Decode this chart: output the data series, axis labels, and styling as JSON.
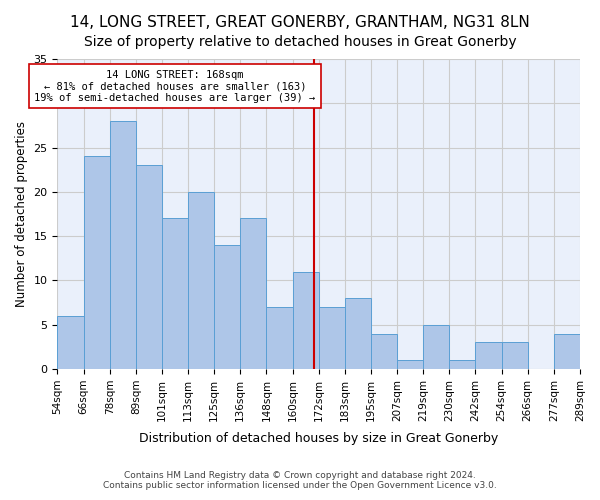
{
  "title1": "14, LONG STREET, GREAT GONERBY, GRANTHAM, NG31 8LN",
  "title2": "Size of property relative to detached houses in Great Gonerby",
  "xlabel": "Distribution of detached houses by size in Great Gonerby",
  "ylabel": "Number of detached properties",
  "footer1": "Contains HM Land Registry data © Crown copyright and database right 2024.",
  "footer2": "Contains public sector information licensed under the Open Government Licence v3.0.",
  "bin_labels": [
    "54sqm",
    "66sqm",
    "78sqm",
    "89sqm",
    "101sqm",
    "113sqm",
    "125sqm",
    "136sqm",
    "148sqm",
    "160sqm",
    "172sqm",
    "183sqm",
    "195sqm",
    "207sqm",
    "219sqm",
    "230sqm",
    "242sqm",
    "254sqm",
    "266sqm",
    "277sqm",
    "289sqm"
  ],
  "bar_heights": [
    6,
    24,
    28,
    23,
    17,
    20,
    14,
    17,
    7,
    11,
    7,
    8,
    4,
    1,
    5,
    1,
    3,
    3,
    0,
    4
  ],
  "bar_color": "#aec6e8",
  "bar_edge_color": "#5a9fd4",
  "vline_x": 9.818,
  "vline_color": "#cc0000",
  "annotation_text": "14 LONG STREET: 168sqm\n← 81% of detached houses are smaller (163)\n19% of semi-detached houses are larger (39) →",
  "annotation_box_color": "#ffffff",
  "annotation_box_edge": "#cc0000",
  "ylim": [
    0,
    35
  ],
  "yticks": [
    0,
    5,
    10,
    15,
    20,
    25,
    30,
    35
  ],
  "grid_color": "#cccccc",
  "background_color": "#eaf0fb",
  "title1_fontsize": 11,
  "title2_fontsize": 10
}
